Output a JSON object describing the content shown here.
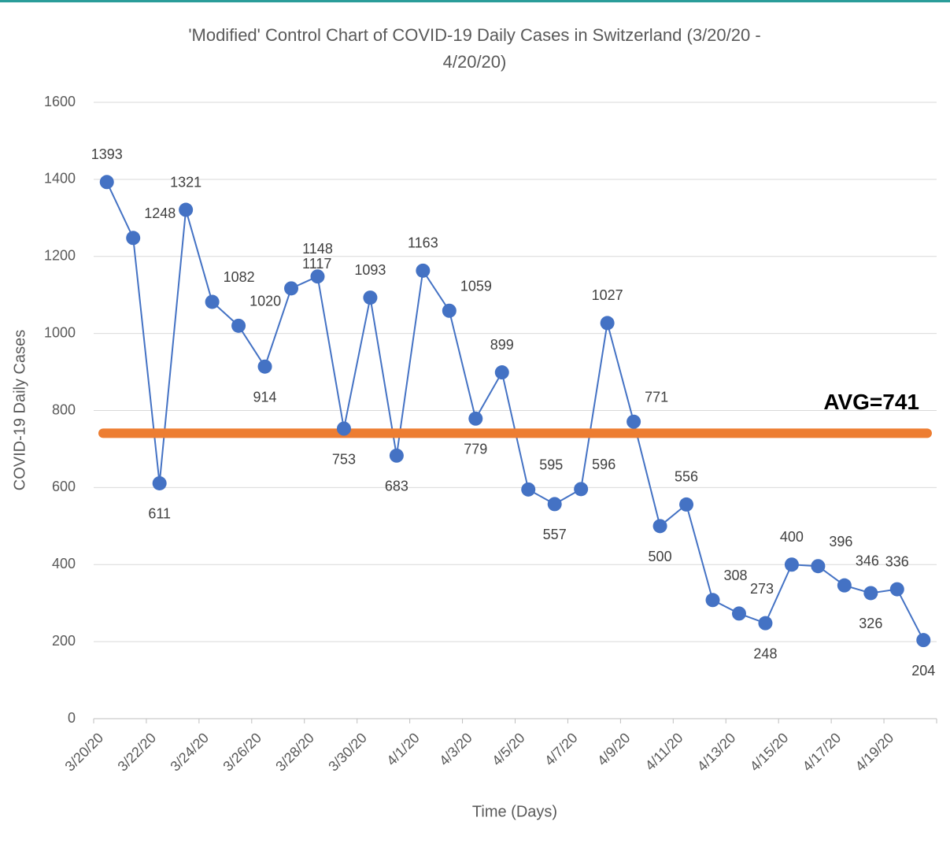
{
  "chart_data": {
    "type": "line",
    "title": "'Modified' Control Chart of COVID-19 Daily Cases in Switzerland (3/20/20 -",
    "title_line2": "4/20/20)",
    "x_label": "Time (Days)",
    "y_label": "COVID-19 Daily Cases",
    "categories": [
      "3/20/20",
      null,
      "3/22/20",
      null,
      "3/24/20",
      null,
      "3/26/20",
      null,
      "3/28/20",
      null,
      "3/30/20",
      null,
      "4/1/20",
      null,
      "4/3/20",
      null,
      "4/5/20",
      null,
      "4/7/20",
      null,
      "4/9/20",
      null,
      "4/11/20",
      null,
      "4/13/20",
      null,
      "4/15/20",
      null,
      "4/17/20",
      null,
      "4/19/20",
      null
    ],
    "series": [
      {
        "name": "Daily Cases",
        "color": "#4472c4",
        "values": [
          1393,
          1248,
          611,
          1321,
          1082,
          1020,
          914,
          1117,
          1148,
          753,
          1093,
          683,
          1163,
          1059,
          779,
          899,
          595,
          557,
          596,
          1027,
          771,
          500,
          556,
          308,
          273,
          248,
          400,
          396,
          346,
          326,
          336,
          204
        ]
      }
    ],
    "reference_line": {
      "label": "AVG=741",
      "value": 741,
      "color": "#ed7d31"
    },
    "ylim": [
      0,
      1600
    ],
    "yticks": [
      0,
      200,
      400,
      600,
      800,
      1000,
      1200,
      1400,
      1600
    ],
    "grid": true
  }
}
